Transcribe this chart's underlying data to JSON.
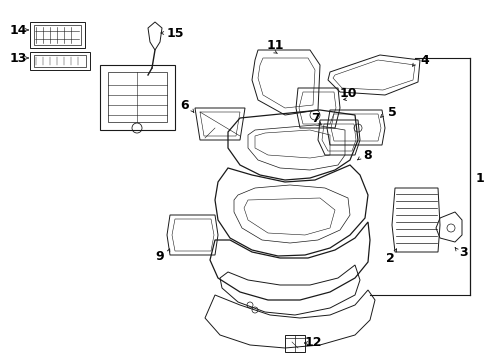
{
  "bg_color": "#ffffff",
  "line_color": "#1a1a1a",
  "fig_width": 4.9,
  "fig_height": 3.6,
  "dpi": 100,
  "gray": "#888888",
  "label_fs": 8.5
}
